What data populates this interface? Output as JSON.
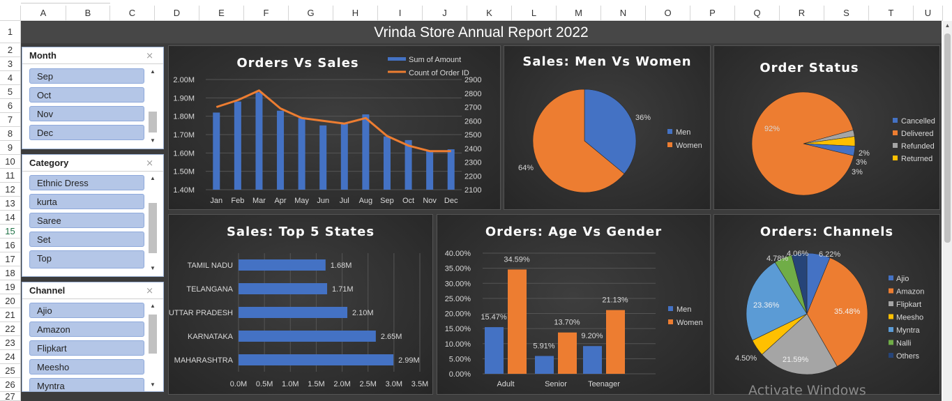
{
  "sheet": {
    "columns": [
      "A",
      "B",
      "C",
      "D",
      "E",
      "F",
      "G",
      "H",
      "I",
      "J",
      "K",
      "L",
      "M",
      "N",
      "O",
      "P",
      "Q",
      "R",
      "S",
      "T",
      "U"
    ],
    "rows": [
      "1",
      "2",
      "3",
      "4",
      "5",
      "6",
      "7",
      "8",
      "9",
      "10",
      "11",
      "12",
      "13",
      "14",
      "15",
      "16",
      "17",
      "18",
      "19",
      "20",
      "21",
      "22",
      "23",
      "24",
      "25",
      "26",
      "27"
    ],
    "selected_row": "15"
  },
  "dashboard": {
    "title": "Vrinda Store Annual Report 2022",
    "watermark": "Activate Windows"
  },
  "slicers": [
    {
      "header": "Month",
      "items": [
        "Sep",
        "Oct",
        "Nov",
        "Dec"
      ]
    },
    {
      "header": "Category",
      "items": [
        "Ethnic Dress",
        "kurta",
        "Saree",
        "Set",
        "Top"
      ]
    },
    {
      "header": "Channel",
      "items": [
        "Ajio",
        "Amazon",
        "Flipkart",
        "Meesho",
        "Myntra"
      ]
    }
  ],
  "colors": {
    "blue": "#4472c4",
    "orange": "#ed7d31",
    "gray": "#a5a5a5",
    "yellow": "#ffc000",
    "lightblue": "#5b9bd5",
    "green": "#70ad47",
    "navy": "#264478",
    "panel_text": "#d9d9d9"
  },
  "chart_data": [
    {
      "id": "orders_vs_sales",
      "type": "bar",
      "title": "Orders Vs Sales",
      "categories": [
        "Jan",
        "Feb",
        "Mar",
        "Apr",
        "May",
        "Jun",
        "Jul",
        "Aug",
        "Sep",
        "Oct",
        "Nov",
        "Dec"
      ],
      "series": [
        {
          "name": "Sum of Amount",
          "kind": "bar",
          "axis": "left",
          "values": [
            1.82,
            1.88,
            1.93,
            1.83,
            1.79,
            1.75,
            1.76,
            1.81,
            1.69,
            1.67,
            1.61,
            1.62
          ]
        },
        {
          "name": "Count of Order ID",
          "kind": "line",
          "axis": "right",
          "values": [
            2700,
            2750,
            2820,
            2690,
            2620,
            2600,
            2580,
            2620,
            2490,
            2420,
            2380,
            2380
          ]
        }
      ],
      "y_left": {
        "min": 1.4,
        "max": 2.0,
        "ticks": [
          "1.40M",
          "1.50M",
          "1.60M",
          "1.70M",
          "1.80M",
          "1.90M",
          "2.00M"
        ]
      },
      "y_right": {
        "min": 2100,
        "max": 2900,
        "ticks": [
          "2100",
          "2200",
          "2300",
          "2400",
          "2500",
          "2600",
          "2700",
          "2800",
          "2900"
        ]
      }
    },
    {
      "id": "sales_men_women",
      "type": "pie",
      "title": "Sales: Men Vs Women",
      "labels": [
        "Men",
        "Women"
      ],
      "values": [
        36,
        64
      ],
      "data_labels": [
        "36%",
        "64%"
      ],
      "legend": "right"
    },
    {
      "id": "order_status",
      "type": "pie",
      "title": "Order Status",
      "labels": [
        "Cancelled",
        "Delivered",
        "Refunded",
        "Returned"
      ],
      "values": [
        3,
        92,
        2,
        3
      ],
      "data_labels": [
        "3%",
        "92%",
        "2%",
        "3%"
      ],
      "legend": "right"
    },
    {
      "id": "top5_states",
      "type": "bar",
      "orientation": "horizontal",
      "title": "Sales: Top 5 States",
      "categories": [
        "TAMIL NADU",
        "TELANGANA",
        "UTTAR PRADESH",
        "KARNATAKA",
        "MAHARASHTRA"
      ],
      "values": [
        1.68,
        1.71,
        2.1,
        2.65,
        2.99
      ],
      "data_labels": [
        "1.68M",
        "1.71M",
        "2.10M",
        "2.65M",
        "2.99M"
      ],
      "xlim": [
        0,
        3.5
      ],
      "x_ticks": [
        "0.0M",
        "0.5M",
        "1.0M",
        "1.5M",
        "2.0M",
        "2.5M",
        "3.0M",
        "3.5M"
      ]
    },
    {
      "id": "age_vs_gender",
      "type": "bar",
      "title": "Orders: Age Vs Gender",
      "categories": [
        "Adult",
        "Senior",
        "Teenager"
      ],
      "series": [
        {
          "name": "Men",
          "values": [
            15.47,
            5.91,
            9.2
          ],
          "data_labels": [
            "15.47%",
            "5.91%",
            "9.20%"
          ]
        },
        {
          "name": "Women",
          "values": [
            34.59,
            13.7,
            21.13
          ],
          "data_labels": [
            "34.59%",
            "13.70%",
            "21.13%"
          ]
        }
      ],
      "ylim": [
        0,
        40
      ],
      "y_ticks": [
        "0.00%",
        "5.00%",
        "10.00%",
        "15.00%",
        "20.00%",
        "25.00%",
        "30.00%",
        "35.00%",
        "40.00%"
      ]
    },
    {
      "id": "channels",
      "type": "pie",
      "title": "Orders: Channels",
      "labels": [
        "Ajio",
        "Amazon",
        "Flipkart",
        "Meesho",
        "Myntra",
        "Nalli",
        "Others"
      ],
      "values": [
        6.22,
        35.48,
        21.59,
        4.5,
        23.36,
        4.78,
        4.06
      ],
      "data_labels": [
        "6.22%",
        "35.48%",
        "21.59%",
        "4.50%",
        "23.36%",
        "4.78%",
        "4.06%"
      ],
      "legend": "right"
    }
  ]
}
